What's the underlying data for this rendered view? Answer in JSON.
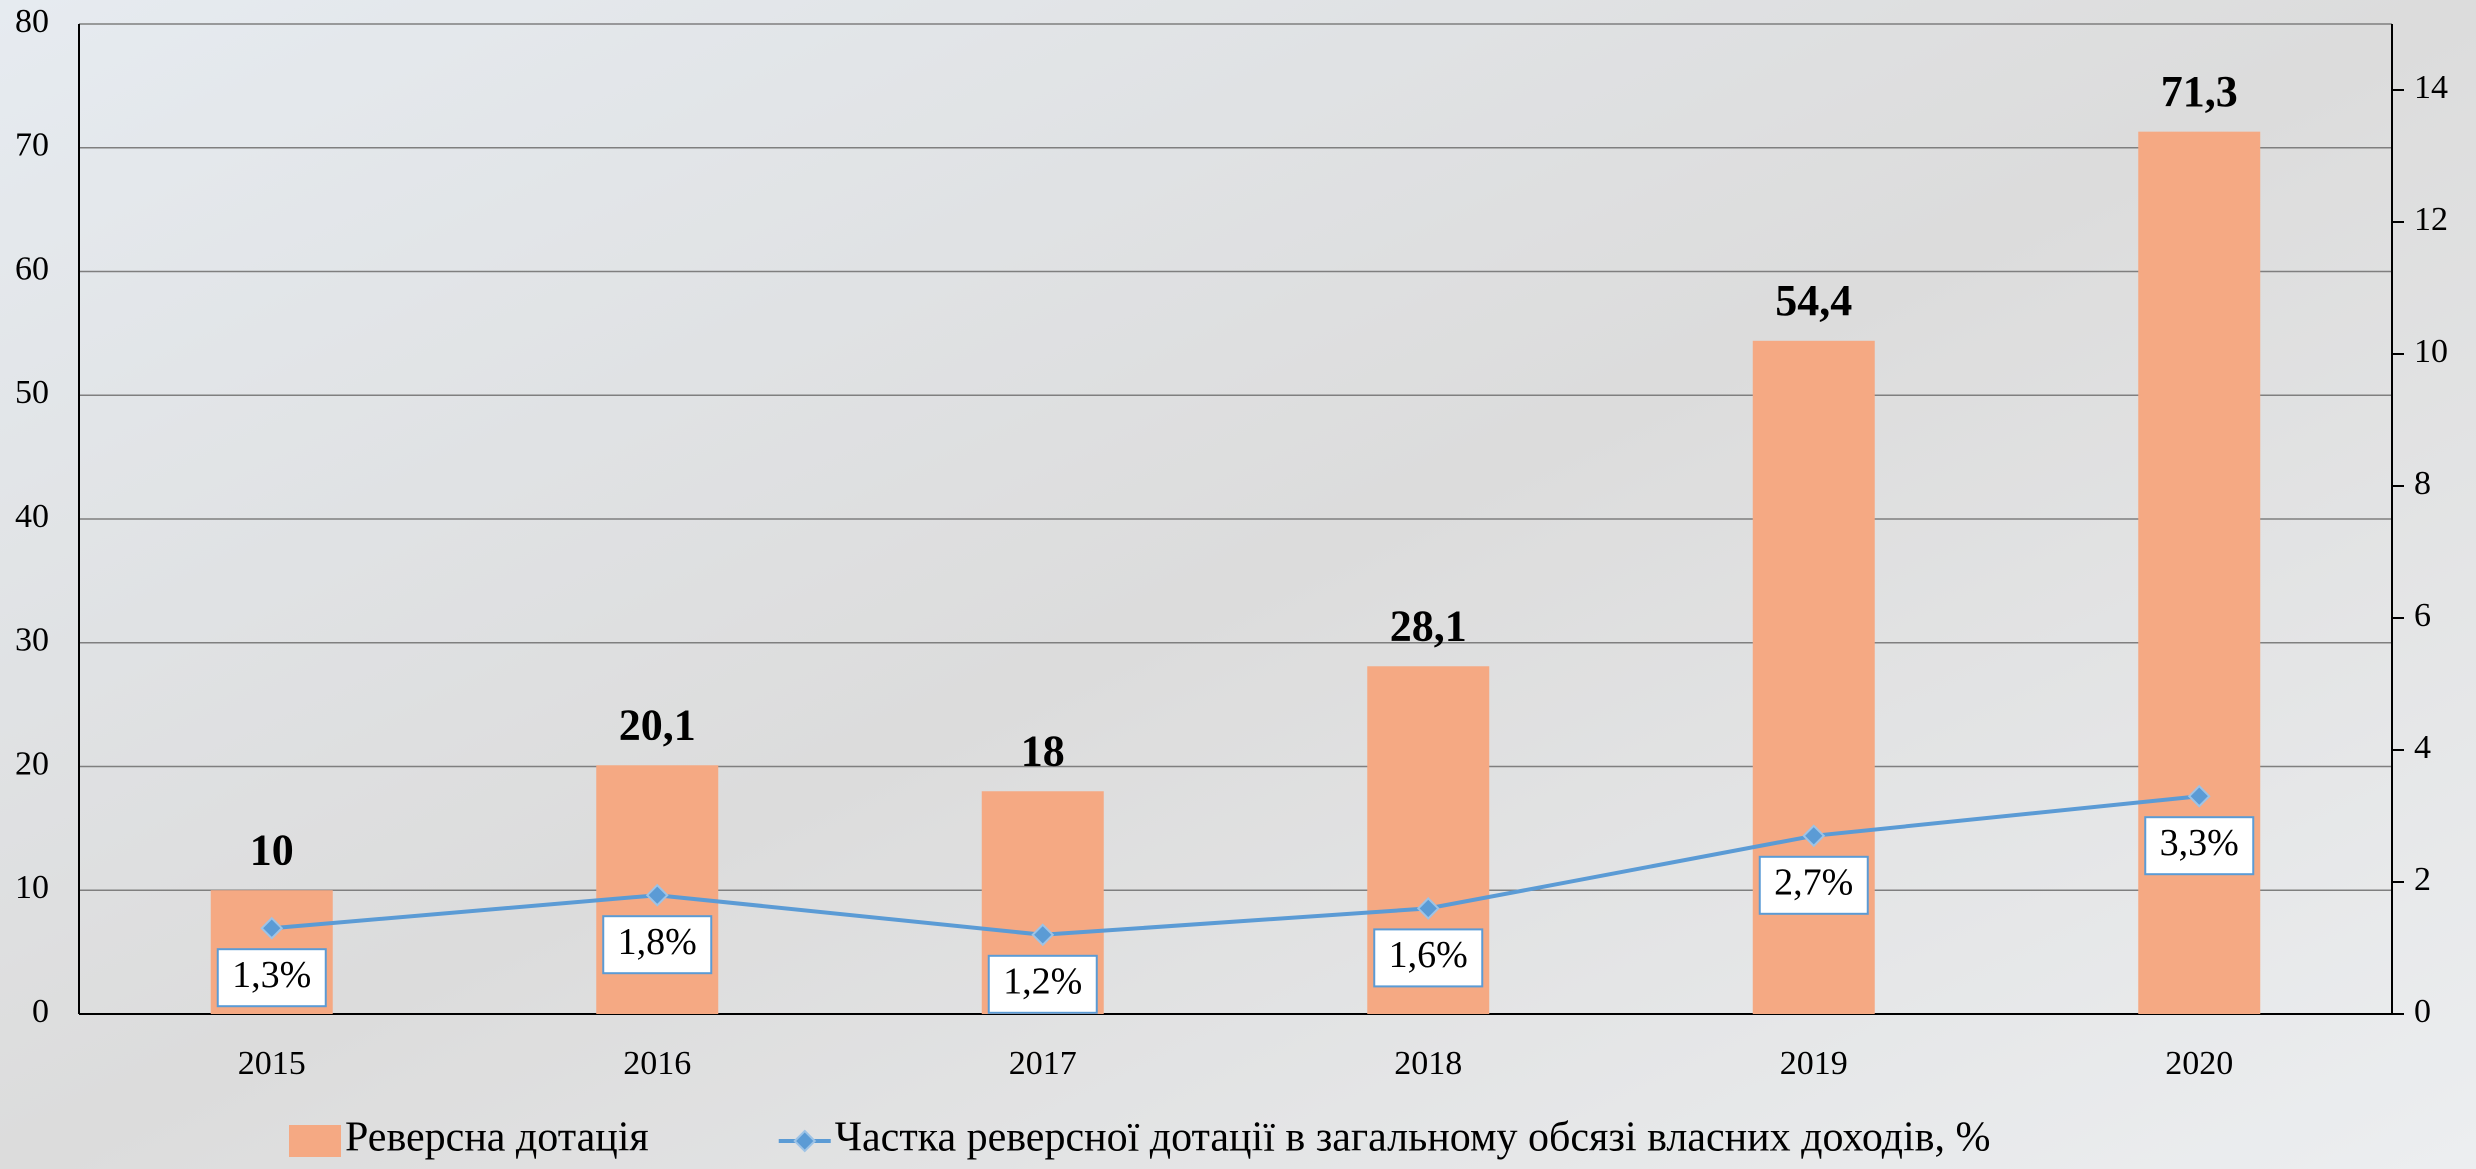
{
  "chart_data": {
    "type": "bar",
    "categories": [
      "2015",
      "2016",
      "2017",
      "2018",
      "2019",
      "2020"
    ],
    "series": [
      {
        "name": "Реверсна дотація",
        "color": "#f5a983",
        "values": [
          10,
          20.1,
          18,
          28.1,
          54.4,
          71.3
        ],
        "value_labels": [
          "10",
          "20,1",
          "18",
          "28,1",
          "54,4",
          "71,3"
        ]
      },
      {
        "name": "Частка реверсної дотації в загальному обсязі власних доходів, %",
        "color": "#5b9bd5",
        "type": "line",
        "axis": "y2",
        "values": [
          1.3,
          1.8,
          1.2,
          1.6,
          2.7,
          3.3
        ],
        "value_labels": [
          "1,3%",
          "1,8%",
          "1,2%",
          "1,6%",
          "2,7%",
          "3,3%"
        ]
      }
    ],
    "ylim": [
      0,
      80
    ],
    "yticks": [
      0,
      10,
      20,
      30,
      40,
      50,
      60,
      70,
      80
    ],
    "y2lim": [
      0,
      15
    ],
    "y2ticks": [
      0,
      2,
      4,
      6,
      8,
      10,
      12,
      14
    ],
    "grid": true,
    "legend": "bottom"
  }
}
